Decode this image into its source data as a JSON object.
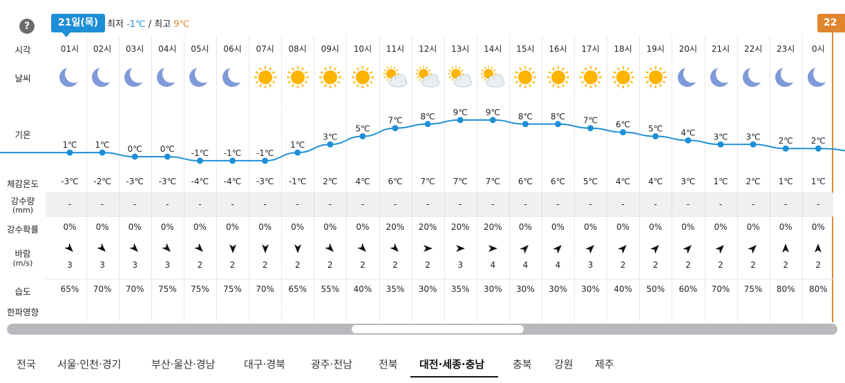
{
  "header": {
    "help": "?",
    "day_badge": "21일(목)",
    "min_label": "최저",
    "min_value": "-1℃",
    "separator": "/",
    "max_label": "최고",
    "max_value": "9℃",
    "next_badge": "22"
  },
  "row_labels": {
    "time": "시각",
    "weather": "날씨",
    "temperature": "기온",
    "feels": "체감온도",
    "precip_amount_line1": "강수량",
    "precip_amount_line2": "(mm)",
    "precip_prob": "강수확률",
    "wind_line1": "바람",
    "wind_line2": "(m/s)",
    "humidity": "습도",
    "cold_wave": "한파영향"
  },
  "hours": [
    {
      "time": "01시",
      "icon": "moon-icon",
      "temp": "1℃",
      "t": 1,
      "feels": "-3℃",
      "precip": "-",
      "prob": "0%",
      "wind_dir": "northwest",
      "wind": "3",
      "humidity": "65%"
    },
    {
      "time": "02시",
      "icon": "moon-icon",
      "temp": "1℃",
      "t": 1,
      "feels": "-2℃",
      "precip": "-",
      "prob": "0%",
      "wind_dir": "northwest",
      "wind": "3",
      "humidity": "70%"
    },
    {
      "time": "03시",
      "icon": "moon-icon",
      "temp": "0℃",
      "t": 0,
      "feels": "-3℃",
      "precip": "-",
      "prob": "0%",
      "wind_dir": "northwest",
      "wind": "3",
      "humidity": "70%"
    },
    {
      "time": "04시",
      "icon": "moon-icon",
      "temp": "0℃",
      "t": 0,
      "feels": "-3℃",
      "precip": "-",
      "prob": "0%",
      "wind_dir": "northwest",
      "wind": "3",
      "humidity": "75%"
    },
    {
      "time": "05시",
      "icon": "moon-icon",
      "temp": "-1℃",
      "t": -1,
      "feels": "-4℃",
      "precip": "-",
      "prob": "0%",
      "wind_dir": "northwest",
      "wind": "2",
      "humidity": "75%"
    },
    {
      "time": "06시",
      "icon": "moon-icon",
      "temp": "-1℃",
      "t": -1,
      "feels": "-4℃",
      "precip": "-",
      "prob": "0%",
      "wind_dir": "north",
      "wind": "2",
      "humidity": "75%"
    },
    {
      "time": "07시",
      "icon": "sun-icon",
      "temp": "-1℃",
      "t": -1,
      "feels": "-3℃",
      "precip": "-",
      "prob": "0%",
      "wind_dir": "north",
      "wind": "2",
      "humidity": "70%"
    },
    {
      "time": "08시",
      "icon": "sun-icon",
      "temp": "1℃",
      "t": 1,
      "feels": "-1℃",
      "precip": "-",
      "prob": "0%",
      "wind_dir": "north",
      "wind": "2",
      "humidity": "65%"
    },
    {
      "time": "09시",
      "icon": "sun-icon",
      "temp": "3℃",
      "t": 3,
      "feels": "2℃",
      "precip": "-",
      "prob": "0%",
      "wind_dir": "northwest",
      "wind": "2",
      "humidity": "55%"
    },
    {
      "time": "10시",
      "icon": "sun-icon",
      "temp": "5℃",
      "t": 5,
      "feels": "4℃",
      "precip": "-",
      "prob": "0%",
      "wind_dir": "northwest",
      "wind": "2",
      "humidity": "40%"
    },
    {
      "time": "11시",
      "icon": "sun-cloud-icon",
      "temp": "7℃",
      "t": 7,
      "feels": "6℃",
      "precip": "-",
      "prob": "20%",
      "wind_dir": "northwest",
      "wind": "2",
      "humidity": "35%"
    },
    {
      "time": "12시",
      "icon": "sun-cloud-icon",
      "temp": "8℃",
      "t": 8,
      "feels": "7℃",
      "precip": "-",
      "prob": "20%",
      "wind_dir": "west",
      "wind": "2",
      "humidity": "30%"
    },
    {
      "time": "13시",
      "icon": "sun-cloud-icon",
      "temp": "9℃",
      "t": 9,
      "feels": "7℃",
      "precip": "-",
      "prob": "20%",
      "wind_dir": "west",
      "wind": "3",
      "humidity": "35%"
    },
    {
      "time": "14시",
      "icon": "sun-cloud-icon",
      "temp": "9℃",
      "t": 9,
      "feels": "7℃",
      "precip": "-",
      "prob": "20%",
      "wind_dir": "west",
      "wind": "4",
      "humidity": "30%"
    },
    {
      "time": "15시",
      "icon": "sun-icon",
      "temp": "8℃",
      "t": 8,
      "feels": "6℃",
      "precip": "-",
      "prob": "0%",
      "wind_dir": "southwest",
      "wind": "4",
      "humidity": "30%"
    },
    {
      "time": "16시",
      "icon": "sun-icon",
      "temp": "8℃",
      "t": 8,
      "feels": "6℃",
      "precip": "-",
      "prob": "0%",
      "wind_dir": "southwest",
      "wind": "4",
      "humidity": "30%"
    },
    {
      "time": "17시",
      "icon": "sun-icon",
      "temp": "7℃",
      "t": 7,
      "feels": "5℃",
      "precip": "-",
      "prob": "0%",
      "wind_dir": "southwest",
      "wind": "3",
      "humidity": "30%"
    },
    {
      "time": "18시",
      "icon": "sun-icon",
      "temp": "6℃",
      "t": 6,
      "feels": "4℃",
      "precip": "-",
      "prob": "0%",
      "wind_dir": "southwest",
      "wind": "2",
      "humidity": "40%"
    },
    {
      "time": "19시",
      "icon": "sun-icon",
      "temp": "5℃",
      "t": 5,
      "feels": "4℃",
      "precip": "-",
      "prob": "0%",
      "wind_dir": "southwest",
      "wind": "2",
      "humidity": "50%"
    },
    {
      "time": "20시",
      "icon": "moon-icon",
      "temp": "4℃",
      "t": 4,
      "feels": "3℃",
      "precip": "-",
      "prob": "0%",
      "wind_dir": "southwest",
      "wind": "2",
      "humidity": "60%"
    },
    {
      "time": "21시",
      "icon": "moon-icon",
      "temp": "3℃",
      "t": 3,
      "feels": "1℃",
      "precip": "-",
      "prob": "0%",
      "wind_dir": "southwest",
      "wind": "2",
      "humidity": "70%"
    },
    {
      "time": "22시",
      "icon": "moon-icon",
      "temp": "3℃",
      "t": 3,
      "feels": "2℃",
      "precip": "-",
      "prob": "0%",
      "wind_dir": "southwest",
      "wind": "2",
      "humidity": "75%"
    },
    {
      "time": "23시",
      "icon": "moon-icon",
      "temp": "2℃",
      "t": 2,
      "feels": "1℃",
      "precip": "-",
      "prob": "0%",
      "wind_dir": "south",
      "wind": "2",
      "humidity": "80%"
    },
    {
      "time": "0시",
      "icon": "moon-icon",
      "temp": "2℃",
      "t": 2,
      "feels": "1℃",
      "precip": "-",
      "prob": "0%",
      "wind_dir": "south",
      "wind": "2",
      "humidity": "80%"
    }
  ],
  "region_tabs": [
    {
      "label": "전국",
      "active": false
    },
    {
      "label": "서울·인천·경기",
      "active": false
    },
    {
      "label": "부산·울산·경남",
      "active": false
    },
    {
      "label": "대구·경북",
      "active": false
    },
    {
      "label": "광주·전남",
      "active": false
    },
    {
      "label": "전북",
      "active": false
    },
    {
      "label": "대전·세종·충남",
      "active": true
    },
    {
      "label": "충북",
      "active": false
    },
    {
      "label": "강원",
      "active": false
    },
    {
      "label": "제주",
      "active": false
    }
  ],
  "colors": {
    "accent": "#1e8fd6",
    "next_day": "#e0862f",
    "moon": "#7f9ad8",
    "sun": "#ffb400"
  }
}
